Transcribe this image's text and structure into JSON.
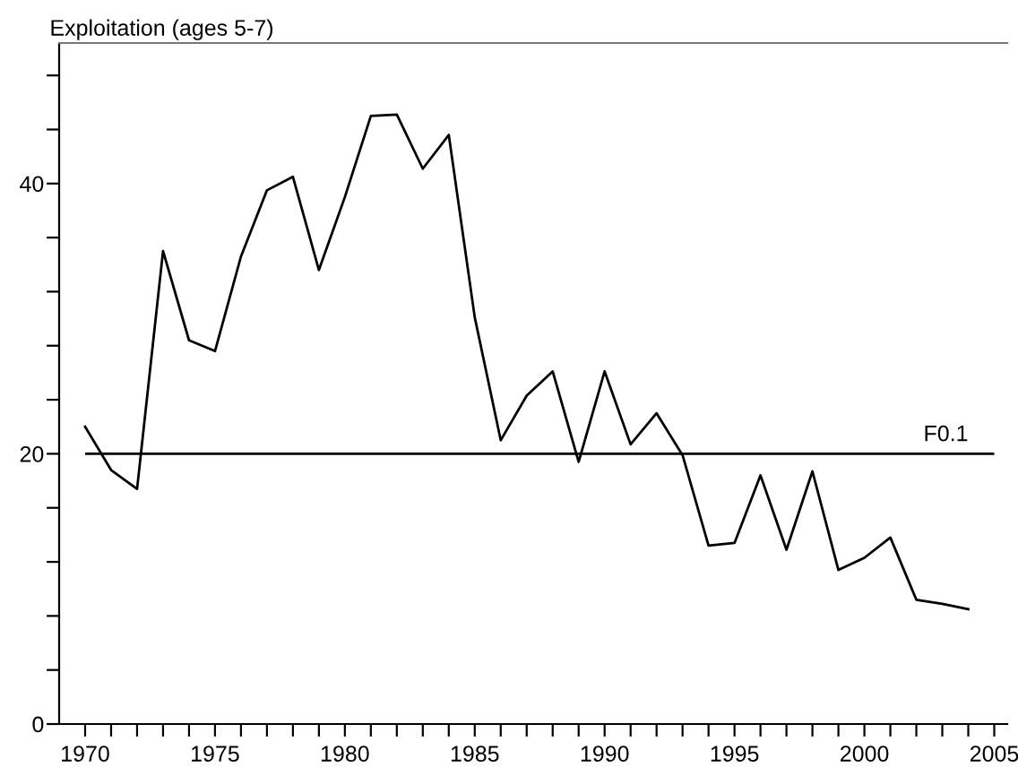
{
  "chart_data": {
    "type": "line",
    "title": "Exploitation (ages 5-7)",
    "x": [
      1970,
      1971,
      1972,
      1973,
      1974,
      1975,
      1976,
      1977,
      1978,
      1979,
      1980,
      1981,
      1982,
      1983,
      1984,
      1985,
      1986,
      1987,
      1988,
      1989,
      1990,
      1991,
      1992,
      1993,
      1994,
      1995,
      1996,
      1997,
      1998,
      1999,
      2000,
      2001,
      2002,
      2003,
      2004
    ],
    "series": [
      {
        "color": "#000000",
        "values": [
          22.0,
          18.8,
          17.4,
          35.0,
          28.4,
          27.6,
          34.6,
          39.5,
          40.5,
          33.6,
          39.0,
          45.0,
          45.1,
          41.1,
          43.6,
          30.1,
          21.0,
          24.3,
          26.1,
          19.4,
          26.1,
          20.7,
          23.0,
          19.9,
          13.2,
          13.4,
          18.4,
          12.9,
          18.7,
          11.4,
          12.3,
          13.8,
          9.2,
          8.9,
          8.5
        ]
      }
    ],
    "xlim": [
      1969,
      2005.5
    ],
    "ylim": [
      0,
      50.4
    ],
    "xticks": [
      1970,
      {
        "value": 1971,
        "label": null
      },
      {
        "value": 1972,
        "label": null
      },
      {
        "value": 1973,
        "label": null
      },
      {
        "value": 1974,
        "label": null
      },
      1975,
      {
        "value": 1976,
        "label": null
      },
      {
        "value": 1977,
        "label": null
      },
      {
        "value": 1978,
        "label": null
      },
      {
        "value": 1979,
        "label": null
      },
      1980,
      {
        "value": 1981,
        "label": null
      },
      {
        "value": 1982,
        "label": null
      },
      {
        "value": 1983,
        "label": null
      },
      {
        "value": 1984,
        "label": null
      },
      1985,
      {
        "value": 1986,
        "label": null
      },
      {
        "value": 1987,
        "label": null
      },
      {
        "value": 1988,
        "label": null
      },
      {
        "value": 1989,
        "label": null
      },
      1990,
      {
        "value": 1991,
        "label": null
      },
      {
        "value": 1992,
        "label": null
      },
      {
        "value": 1993,
        "label": null
      },
      {
        "value": 1994,
        "label": null
      },
      1995,
      {
        "value": 1996,
        "label": null
      },
      {
        "value": 1997,
        "label": null
      },
      {
        "value": 1998,
        "label": null
      },
      {
        "value": 1999,
        "label": null
      },
      2000,
      {
        "value": 2001,
        "label": null
      },
      {
        "value": 2002,
        "label": null
      },
      {
        "value": 2003,
        "label": null
      },
      {
        "value": 2004,
        "label": null
      },
      2005
    ],
    "yticks": [
      0,
      {
        "value": 4,
        "label": null
      },
      {
        "value": 8,
        "label": null
      },
      {
        "value": 12,
        "label": null
      },
      {
        "value": 16,
        "label": null
      },
      20,
      {
        "value": 24,
        "label": null
      },
      {
        "value": 28,
        "label": null
      },
      {
        "value": 32,
        "label": null
      },
      {
        "value": 36,
        "label": null
      },
      40,
      {
        "value": 44,
        "label": null
      },
      {
        "value": 48,
        "label": null
      }
    ],
    "ref_lines": [
      {
        "axis": "y",
        "value": 20,
        "label": "F0.1",
        "color": "#000000"
      }
    ],
    "grid": false,
    "legend": false,
    "marker": "none",
    "line_style": "solid"
  }
}
